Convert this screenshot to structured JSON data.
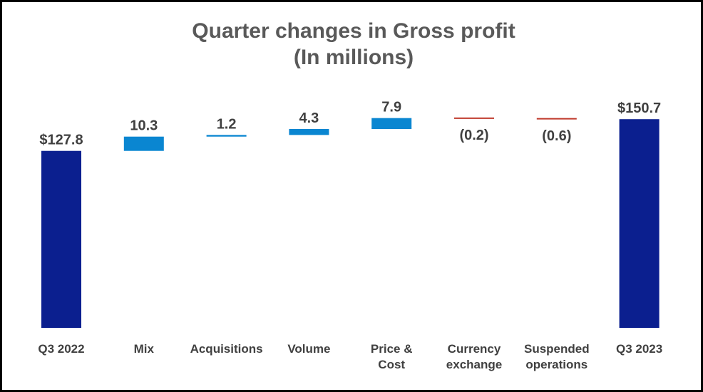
{
  "chart_data": {
    "type": "bar",
    "subtype": "waterfall",
    "title": "Quarter changes in Gross profit",
    "subtitle": "(In millions)",
    "categories": [
      [
        "Q3 2022"
      ],
      [
        "Mix"
      ],
      [
        "Acquisitions"
      ],
      [
        "Volume"
      ],
      [
        "Price &",
        "Cost"
      ],
      [
        "Currency",
        "exchange"
      ],
      [
        "Suspended",
        "operations"
      ],
      [
        "Q3 2023"
      ]
    ],
    "values": [
      127.8,
      10.3,
      1.2,
      4.3,
      7.9,
      -0.2,
      -0.6,
      150.7
    ],
    "kinds": [
      "total",
      "delta",
      "delta",
      "delta",
      "delta",
      "delta",
      "delta",
      "total"
    ],
    "data_labels": [
      "$127.8",
      "10.3",
      "1.2",
      "4.3",
      "7.9",
      "(0.2)",
      "(0.6)",
      "$150.7"
    ],
    "colors": {
      "total": "#0b1f8f",
      "increase": "#0a86d1",
      "decrease": "#c0392b",
      "title": "#595959",
      "label": "#404040"
    },
    "grid": false,
    "legend": "none"
  }
}
